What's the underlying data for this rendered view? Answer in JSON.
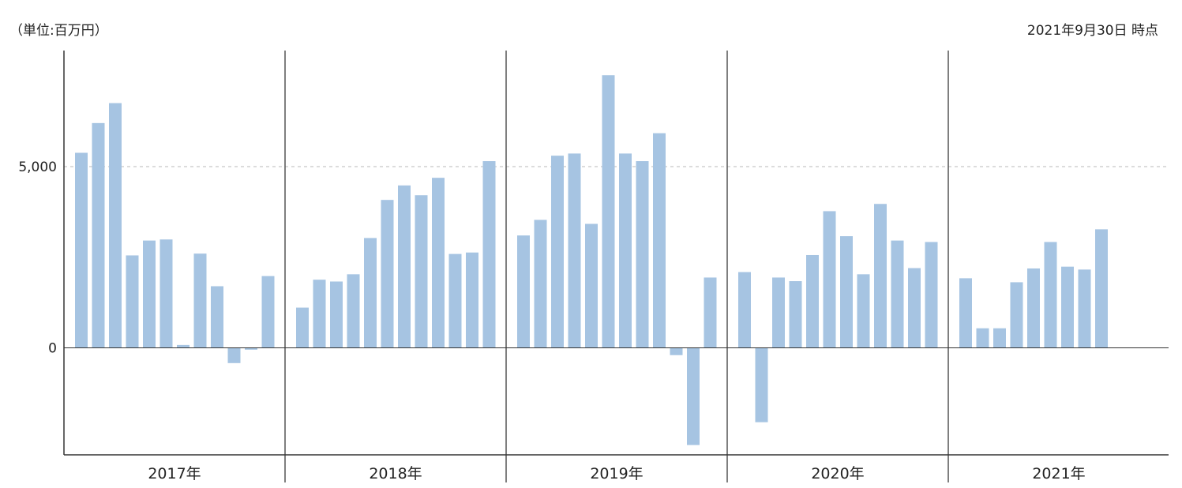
{
  "header": {
    "unit_label": "（単位:百万円）",
    "as_of_label": "2021年9月30日 時点"
  },
  "colors": {
    "bar": "#a6c4e2",
    "axis": "#333333",
    "divider": "#555555",
    "gridline": "#b8b8b8"
  },
  "chart_data": {
    "type": "bar",
    "title": "",
    "xlabel": "",
    "ylabel": "",
    "ylim": [
      -2950,
      8200
    ],
    "yticks": [
      0,
      5000
    ],
    "ytick_labels": [
      "0",
      "5,000"
    ],
    "grid": {
      "dashed_at": [
        5000
      ]
    },
    "groups": [
      {
        "label": "2017年",
        "values": [
          5380,
          6200,
          6750,
          2550,
          2960,
          2990,
          80,
          2600,
          1700,
          -420,
          -50,
          1980
        ]
      },
      {
        "label": "2018年",
        "values": [
          1110,
          1880,
          1830,
          2030,
          3030,
          4080,
          4480,
          4210,
          4690,
          2590,
          2630,
          5150
        ]
      },
      {
        "label": "2019年",
        "values": [
          3100,
          3530,
          5300,
          5360,
          3420,
          7520,
          5360,
          5150,
          5920,
          -200,
          -2680,
          1940
        ]
      },
      {
        "label": "2020年",
        "values": [
          2090,
          -2050,
          1940,
          1840,
          2560,
          3770,
          3080,
          2030,
          3970,
          2960,
          2200,
          2920
        ]
      },
      {
        "label": "2021年",
        "values": [
          1920,
          540,
          540,
          1810,
          2190,
          2920,
          2240,
          2160,
          3270
        ]
      }
    ]
  }
}
